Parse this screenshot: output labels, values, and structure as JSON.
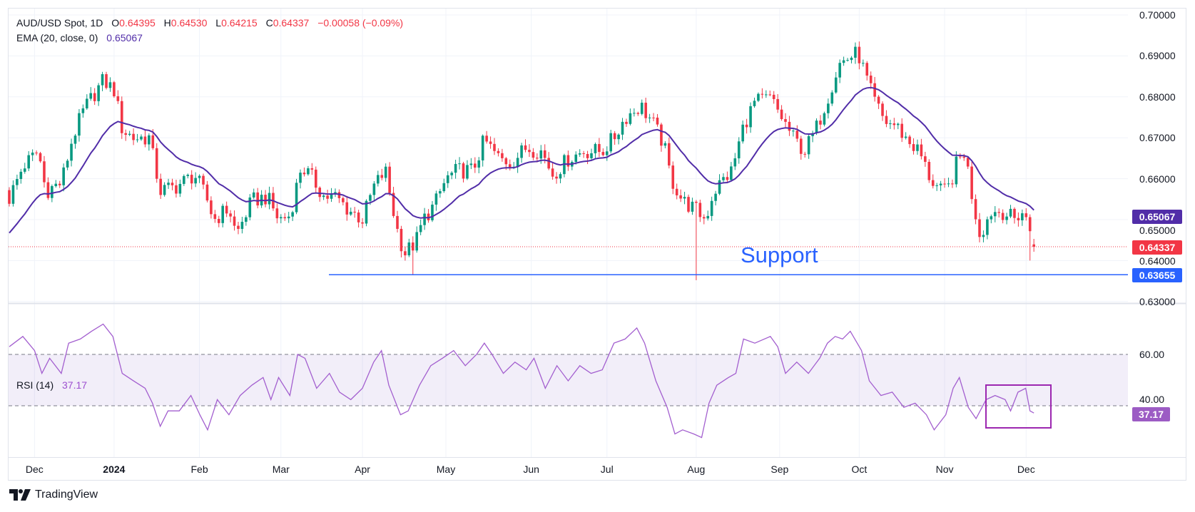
{
  "header": {
    "symbol": "AUD/USD Spot, 1D",
    "o_label": "O",
    "open": "0.64395",
    "h_label": "H",
    "high": "0.64530",
    "l_label": "L",
    "low": "0.64215",
    "c_label": "C",
    "close": "0.64337",
    "change": "−0.00058 (−0.09%)"
  },
  "ema": {
    "label": "EMA (20, close, 0)",
    "value": "0.65067"
  },
  "rsi": {
    "label": "RSI (14)",
    "value": "37.17"
  },
  "price_axis": [
    "0.70000",
    "0.69000",
    "0.68000",
    "0.67000",
    "0.66000",
    "0.65000",
    "0.64000",
    "0.63000"
  ],
  "rsi_axis": [
    "60.00",
    "40.00"
  ],
  "badges": {
    "ema": "0.65067",
    "last": "0.64337",
    "support": "0.63655",
    "rsi": "37.17"
  },
  "annotation": {
    "support_label": "Support"
  },
  "x_ticks": [
    {
      "label": "Dec",
      "day": 6.5
    },
    {
      "label": "2024",
      "day": 27
    },
    {
      "label": "Feb",
      "day": 49
    },
    {
      "label": "Mar",
      "day": 70
    },
    {
      "label": "Apr",
      "day": 91
    },
    {
      "label": "May",
      "day": 112.5
    },
    {
      "label": "Jun",
      "day": 134.5
    },
    {
      "label": "Jul",
      "day": 154
    },
    {
      "label": "Aug",
      "day": 177
    },
    {
      "label": "Sep",
      "day": 198.5
    },
    {
      "label": "Oct",
      "day": 219
    },
    {
      "label": "Nov",
      "day": 241
    },
    {
      "label": "Dec",
      "day": 262
    }
  ],
  "footer": {
    "brand": "TradingView"
  },
  "colors": {
    "up": "#089981",
    "down": "#F23645",
    "ema": "#512DA8",
    "support": "#2962FF",
    "rsi": "#A35FCF",
    "rsi_box": "#9C27B0",
    "rsi_badge": "#9C5CC4"
  },
  "chart_data": {
    "type": "candlestick",
    "title": "AUD/USD Spot, 1D",
    "ylim": [
      0.63,
      0.7
    ],
    "rsi_ylim_band": [
      40,
      60
    ],
    "support_level": 0.63655,
    "last_price": 0.64337,
    "ema_period": 20,
    "ema_seed": 0.646,
    "num_days": 265,
    "price_path": [
      [
        0,
        0.6552
      ],
      [
        3.5,
        0.663
      ],
      [
        7.5,
        0.6667
      ],
      [
        9.4,
        0.657
      ],
      [
        13.4,
        0.659
      ],
      [
        16.3,
        0.67
      ],
      [
        19.3,
        0.677
      ],
      [
        24.2,
        0.684
      ],
      [
        27.1,
        0.6815
      ],
      [
        29.1,
        0.672
      ],
      [
        32,
        0.67
      ],
      [
        36,
        0.67
      ],
      [
        38.9,
        0.657
      ],
      [
        42.8,
        0.658
      ],
      [
        47.7,
        0.661
      ],
      [
        50.7,
        0.6556
      ],
      [
        52.7,
        0.65
      ],
      [
        56.6,
        0.6528
      ],
      [
        58.5,
        0.6463
      ],
      [
        62.5,
        0.6546
      ],
      [
        66.4,
        0.6556
      ],
      [
        69.4,
        0.65
      ],
      [
        72.3,
        0.651
      ],
      [
        75.2,
        0.663
      ],
      [
        78.2,
        0.66
      ],
      [
        81.1,
        0.6556
      ],
      [
        84.1,
        0.6556
      ],
      [
        87,
        0.6528
      ],
      [
        91,
        0.65
      ],
      [
        93.9,
        0.658
      ],
      [
        96.9,
        0.662
      ],
      [
        99.8,
        0.648
      ],
      [
        101.8,
        0.6417
      ],
      [
        104.7,
        0.6444
      ],
      [
        106.7,
        0.65
      ],
      [
        109.6,
        0.6537
      ],
      [
        112.6,
        0.66
      ],
      [
        115.5,
        0.662
      ],
      [
        119.4,
        0.662
      ],
      [
        122.4,
        0.6694
      ],
      [
        126.3,
        0.6648
      ],
      [
        129.3,
        0.664
      ],
      [
        133.2,
        0.6676
      ],
      [
        137.1,
        0.6667
      ],
      [
        140.1,
        0.661
      ],
      [
        144,
        0.6648
      ],
      [
        147.9,
        0.6667
      ],
      [
        152.8,
        0.6667
      ],
      [
        155.8,
        0.67
      ],
      [
        158.7,
        0.675
      ],
      [
        162.7,
        0.6778
      ],
      [
        165.6,
        0.674
      ],
      [
        168.6,
        0.6685
      ],
      [
        170.5,
        0.66
      ],
      [
        173.5,
        0.6546
      ],
      [
        177.4,
        0.652
      ],
      [
        179.4,
        0.65
      ],
      [
        181.3,
        0.6565
      ],
      [
        183.3,
        0.659
      ],
      [
        186.2,
        0.662
      ],
      [
        189.2,
        0.673
      ],
      [
        192.1,
        0.6787
      ],
      [
        196.1,
        0.6796
      ],
      [
        199,
        0.675
      ],
      [
        202,
        0.67
      ],
      [
        204.9,
        0.6667
      ],
      [
        207.9,
        0.6722
      ],
      [
        210.8,
        0.6796
      ],
      [
        213.8,
        0.688
      ],
      [
        216.7,
        0.6898
      ],
      [
        218.7,
        0.6907
      ],
      [
        220.6,
        0.6852
      ],
      [
        222.6,
        0.6796
      ],
      [
        225.5,
        0.674
      ],
      [
        228.5,
        0.673
      ],
      [
        231.4,
        0.6694
      ],
      [
        234.4,
        0.6667
      ],
      [
        237.3,
        0.66
      ],
      [
        240.3,
        0.6565
      ],
      [
        242.2,
        0.658
      ],
      [
        244.2,
        0.664
      ],
      [
        246.2,
        0.6667
      ],
      [
        248.1,
        0.6556
      ],
      [
        250.1,
        0.6463
      ],
      [
        253,
        0.652
      ],
      [
        256,
        0.652
      ],
      [
        258.9,
        0.65
      ],
      [
        260.9,
        0.652
      ],
      [
        262.9,
        0.648
      ],
      [
        263.8,
        0.644
      ],
      [
        264,
        0.64337
      ]
    ],
    "special_lows": [
      [
        104,
        0.6365
      ],
      [
        177,
        0.6352
      ],
      [
        263,
        0.64
      ]
    ],
    "last_candle": {
      "open": 0.64395,
      "high": 0.6453,
      "low": 0.64215,
      "close": 0.64337
    },
    "rsi_path": [
      [
        0,
        63
      ],
      [
        3.5,
        67
      ],
      [
        6.5,
        61.5
      ],
      [
        8.4,
        52.6
      ],
      [
        10.4,
        58.5
      ],
      [
        13.4,
        52.6
      ],
      [
        15.3,
        64.4
      ],
      [
        18.3,
        66
      ],
      [
        21.2,
        69
      ],
      [
        24.2,
        71.8
      ],
      [
        26.7,
        67
      ],
      [
        29.1,
        52.6
      ],
      [
        32,
        49.7
      ],
      [
        35,
        46.8
      ],
      [
        36.9,
        41
      ],
      [
        38.9,
        32
      ],
      [
        40.9,
        38
      ],
      [
        43.8,
        38
      ],
      [
        46.8,
        44
      ],
      [
        49.1,
        36.5
      ],
      [
        51.1,
        30.6
      ],
      [
        53.6,
        42.4
      ],
      [
        56.6,
        36.5
      ],
      [
        59.5,
        44
      ],
      [
        62.5,
        48
      ],
      [
        65.4,
        51
      ],
      [
        67.4,
        42.4
      ],
      [
        69.4,
        51
      ],
      [
        72.3,
        44
      ],
      [
        74.3,
        60
      ],
      [
        76.2,
        58.5
      ],
      [
        79.2,
        46.8
      ],
      [
        82.5,
        52.6
      ],
      [
        85.1,
        45.3
      ],
      [
        88,
        42.4
      ],
      [
        91,
        46.8
      ],
      [
        93.9,
        57
      ],
      [
        95.9,
        61.5
      ],
      [
        97.8,
        48
      ],
      [
        100.8,
        36.5
      ],
      [
        102.8,
        38
      ],
      [
        105.7,
        48
      ],
      [
        108.6,
        55.6
      ],
      [
        111.6,
        58.5
      ],
      [
        114.5,
        61.5
      ],
      [
        117.5,
        55.6
      ],
      [
        120.4,
        60
      ],
      [
        122.4,
        64.4
      ],
      [
        124.4,
        60
      ],
      [
        127.3,
        52.6
      ],
      [
        130.3,
        57
      ],
      [
        133.2,
        54
      ],
      [
        135.2,
        58.5
      ],
      [
        138.1,
        46.8
      ],
      [
        141.1,
        55.6
      ],
      [
        144,
        49.7
      ],
      [
        147,
        55.6
      ],
      [
        149.9,
        52.6
      ],
      [
        152.8,
        54
      ],
      [
        155.8,
        64.4
      ],
      [
        158.7,
        66
      ],
      [
        161.7,
        70.3
      ],
      [
        163.7,
        64.4
      ],
      [
        166.6,
        49.7
      ],
      [
        169.5,
        39.4
      ],
      [
        171.5,
        29
      ],
      [
        173.5,
        30.6
      ],
      [
        176.4,
        29
      ],
      [
        178.4,
        27.6
      ],
      [
        180.3,
        41
      ],
      [
        182.3,
        48
      ],
      [
        185.3,
        51
      ],
      [
        187.2,
        52.6
      ],
      [
        189.2,
        66
      ],
      [
        192.1,
        64.4
      ],
      [
        196.1,
        67
      ],
      [
        198,
        63
      ],
      [
        200,
        52.6
      ],
      [
        202.9,
        57
      ],
      [
        205.9,
        52.6
      ],
      [
        208.8,
        58.5
      ],
      [
        210.8,
        64.4
      ],
      [
        212.8,
        67
      ],
      [
        214.7,
        66
      ],
      [
        216.7,
        69
      ],
      [
        219.6,
        61.5
      ],
      [
        221.6,
        49.7
      ],
      [
        224.6,
        44
      ],
      [
        227.5,
        45.3
      ],
      [
        230.5,
        39.4
      ],
      [
        233.4,
        41
      ],
      [
        236.3,
        36.5
      ],
      [
        238.3,
        30.6
      ],
      [
        241.3,
        36.5
      ],
      [
        243.2,
        46.8
      ],
      [
        244.8,
        51
      ],
      [
        247.1,
        39.4
      ],
      [
        249.1,
        35
      ],
      [
        251.7,
        42.4
      ],
      [
        254,
        44
      ],
      [
        256.6,
        42.4
      ],
      [
        258,
        38
      ],
      [
        259.9,
        45.3
      ],
      [
        261.9,
        46.8
      ],
      [
        263,
        38
      ],
      [
        264,
        37.17
      ]
    ]
  }
}
